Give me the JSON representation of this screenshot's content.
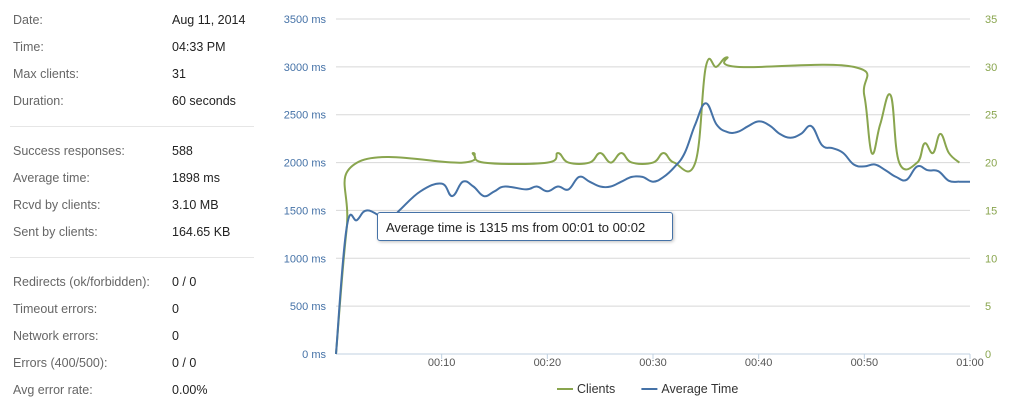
{
  "stats": [
    {
      "label": "Date:",
      "value": "Aug 11, 2014"
    },
    {
      "label": "Time:",
      "value": "04:33 PM"
    },
    {
      "label": "Max clients:",
      "value": "31"
    },
    {
      "label": "Duration:",
      "value": "60 seconds"
    },
    {
      "label": "Success responses:",
      "value": "588"
    },
    {
      "label": "Average time:",
      "value": "1898 ms"
    },
    {
      "label": "Rcvd by clients:",
      "value": "3.10 MB"
    },
    {
      "label": "Sent by clients:",
      "value": "164.65 KB"
    },
    {
      "label": "Redirects (ok/forbidden):",
      "value": "0 / 0"
    },
    {
      "label": "Timeout errors:",
      "value": "0"
    },
    {
      "label": "Network errors:",
      "value": "0"
    },
    {
      "label": "Errors (400/500):",
      "value": "0 / 0"
    },
    {
      "label": "Avg error rate:",
      "value": "0.00%"
    }
  ],
  "tooltip": {
    "text": "Average time is 1315 ms from 00:01 to 00:02"
  },
  "chart_data": {
    "type": "line",
    "x_ticks": [
      "00:10",
      "00:20",
      "00:30",
      "00:40",
      "00:50",
      "01:00"
    ],
    "x_tick_values": [
      10,
      20,
      30,
      40,
      50,
      60
    ],
    "xlim": [
      0,
      60
    ],
    "y_left": {
      "ticks": [
        "0 ms",
        "500 ms",
        "1000 ms",
        "1500 ms",
        "2000 ms",
        "2500 ms",
        "3000 ms",
        "3500 ms"
      ],
      "lim": [
        0,
        3500
      ],
      "color": "#4572a7"
    },
    "y_right": {
      "ticks": [
        "0",
        "5",
        "10",
        "15",
        "20",
        "25",
        "30",
        "35"
      ],
      "lim": [
        0,
        35
      ],
      "color": "#89a54e"
    },
    "grid": true,
    "legend_position": "bottom-center",
    "series": [
      {
        "name": "Clients",
        "axis": "right",
        "color": "#89a54e",
        "points": [
          [
            0,
            0
          ],
          [
            1,
            13
          ],
          [
            2,
            20
          ],
          [
            12,
            20
          ],
          [
            13,
            21
          ],
          [
            14,
            20
          ],
          [
            20,
            20
          ],
          [
            21,
            21
          ],
          [
            22,
            20
          ],
          [
            24,
            20
          ],
          [
            25,
            21
          ],
          [
            26,
            20
          ],
          [
            27,
            21
          ],
          [
            28,
            20
          ],
          [
            30,
            20
          ],
          [
            31,
            21
          ],
          [
            32,
            20
          ],
          [
            34,
            20
          ],
          [
            35,
            30
          ],
          [
            36,
            30
          ],
          [
            37,
            31
          ],
          [
            38,
            30
          ],
          [
            49,
            30
          ],
          [
            50,
            27
          ],
          [
            50.7,
            21
          ],
          [
            51.5,
            24
          ],
          [
            52.5,
            27
          ],
          [
            53.3,
            20
          ],
          [
            55,
            20
          ],
          [
            55.7,
            22
          ],
          [
            56.5,
            21
          ],
          [
            57.2,
            23
          ],
          [
            58,
            21
          ],
          [
            59,
            20
          ]
        ]
      },
      {
        "name": "Average Time",
        "axis": "left",
        "color": "#4572a7",
        "points": [
          [
            0,
            0
          ],
          [
            1,
            1315
          ],
          [
            2,
            1400
          ],
          [
            3,
            1500
          ],
          [
            5,
            1400
          ],
          [
            6,
            1500
          ],
          [
            8,
            1700
          ],
          [
            10,
            1780
          ],
          [
            11,
            1650
          ],
          [
            12,
            1800
          ],
          [
            13,
            1750
          ],
          [
            14,
            1650
          ],
          [
            15,
            1700
          ],
          [
            16,
            1750
          ],
          [
            18,
            1720
          ],
          [
            19,
            1750
          ],
          [
            20,
            1700
          ],
          [
            21,
            1750
          ],
          [
            22,
            1720
          ],
          [
            23,
            1850
          ],
          [
            24,
            1800
          ],
          [
            25,
            1750
          ],
          [
            26,
            1750
          ],
          [
            27,
            1800
          ],
          [
            28,
            1850
          ],
          [
            29,
            1850
          ],
          [
            30,
            1800
          ],
          [
            31,
            1850
          ],
          [
            32,
            1950
          ],
          [
            33,
            2100
          ],
          [
            34,
            2400
          ],
          [
            35,
            2620
          ],
          [
            36,
            2400
          ],
          [
            37,
            2320
          ],
          [
            38,
            2320
          ],
          [
            39,
            2380
          ],
          [
            40,
            2430
          ],
          [
            41,
            2390
          ],
          [
            42,
            2300
          ],
          [
            43,
            2260
          ],
          [
            44,
            2300
          ],
          [
            45,
            2380
          ],
          [
            46,
            2180
          ],
          [
            47,
            2150
          ],
          [
            48,
            2100
          ],
          [
            49,
            1980
          ],
          [
            50,
            1960
          ],
          [
            51,
            1980
          ],
          [
            52,
            1920
          ],
          [
            53,
            1850
          ],
          [
            54,
            1820
          ],
          [
            55,
            1960
          ],
          [
            56,
            1920
          ],
          [
            57,
            1910
          ],
          [
            58,
            1810
          ],
          [
            59,
            1800
          ],
          [
            60,
            1800
          ]
        ]
      }
    ]
  }
}
